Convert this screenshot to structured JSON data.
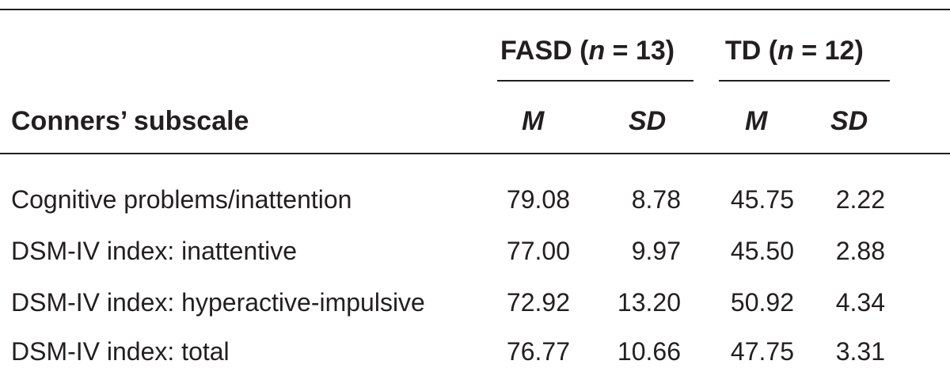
{
  "table": {
    "stub_header": "Conners’ subscale",
    "groups": [
      {
        "label": "FASD (",
        "n_symbol": "n",
        "n_text": " = 13)"
      },
      {
        "label": "TD (",
        "n_symbol": "n",
        "n_text": " = 12)"
      }
    ],
    "subheaders": [
      "M",
      "SD",
      "M",
      "SD"
    ],
    "rows": [
      {
        "label": "Cognitive problems/inattention",
        "values": [
          "79.08",
          "8.78",
          "45.75",
          "2.22"
        ]
      },
      {
        "label": "DSM-IV index: inattentive",
        "values": [
          "77.00",
          "9.97",
          "45.50",
          "2.88"
        ]
      },
      {
        "label": "DSM-IV index: hyperactive-impulsive",
        "values": [
          "72.92",
          "13.20",
          "50.92",
          "4.34"
        ]
      },
      {
        "label": "DSM-IV index: total",
        "values": [
          "76.77",
          "10.66",
          "47.75",
          "3.31"
        ]
      }
    ]
  }
}
